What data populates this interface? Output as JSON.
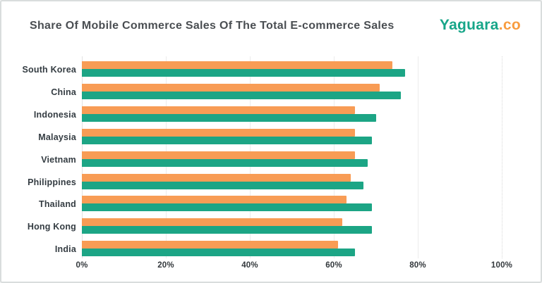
{
  "header": {
    "title": "Share Of Mobile Commerce Sales Of The Total E-commerce Sales",
    "logo": {
      "main": "Yaguara",
      "suffix": ".co"
    }
  },
  "colors": {
    "bar_orange": "#f89c55",
    "bar_green": "#1ca585",
    "logo_green": "#17a689",
    "logo_orange": "#f89c3f",
    "title_text": "#4a4e52",
    "axis_text": "#33383c",
    "gridline": "#ececec",
    "frame_border": "#d9dddd",
    "background": "#ffffff"
  },
  "chart_data": {
    "type": "bar",
    "orientation": "horizontal",
    "title": "Share Of Mobile Commerce Sales Of The Total E-commerce Sales",
    "categories": [
      "South Korea",
      "China",
      "Indonesia",
      "Malaysia",
      "Vietnam",
      "Philippines",
      "Thailand",
      "Hong Kong",
      "India"
    ],
    "series": [
      {
        "name": "orange",
        "color": "#f89c55",
        "values": [
          74,
          71,
          65,
          65,
          65,
          64,
          63,
          62,
          61
        ]
      },
      {
        "name": "green",
        "color": "#1ca585",
        "values": [
          77,
          76,
          70,
          69,
          68,
          67,
          69,
          69,
          65
        ]
      }
    ],
    "value_unit": "%",
    "xlabel": "",
    "ylabel": "",
    "x_ticks": [
      "0%",
      "20%",
      "40%",
      "60%",
      "80%",
      "100%"
    ],
    "x_tick_values": [
      0,
      20,
      40,
      60,
      80,
      100
    ],
    "xlim": [
      0,
      104
    ],
    "grid": "vertical",
    "legend": "none"
  }
}
